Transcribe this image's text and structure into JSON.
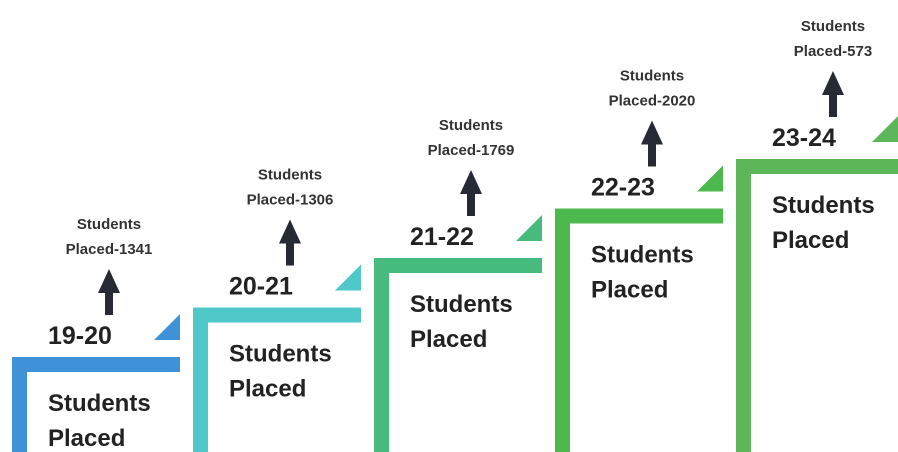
{
  "steps": [
    {
      "year": "19-20",
      "caption": [
        "Students",
        "Placed-1341"
      ],
      "label": [
        "Students",
        "Placed"
      ],
      "color": "#3f92d8"
    },
    {
      "year": "20-21",
      "caption": [
        "Students",
        "Placed-1306"
      ],
      "label": [
        "Students",
        "Placed"
      ],
      "color": "#4ec8c8"
    },
    {
      "year": "21-22",
      "caption": [
        "Students",
        "Placed-1769"
      ],
      "label": [
        "Students",
        "Placed"
      ],
      "color": "#46bb7d"
    },
    {
      "year": "22-23",
      "caption": [
        "Students",
        "Placed-2020"
      ],
      "label": [
        "Students",
        "Placed"
      ],
      "color": "#4cb84e"
    },
    {
      "year": "23-24",
      "caption": [
        "Students",
        "Placed-573"
      ],
      "label": [
        "Students",
        "Placed"
      ],
      "color": "#5db75a"
    }
  ]
}
